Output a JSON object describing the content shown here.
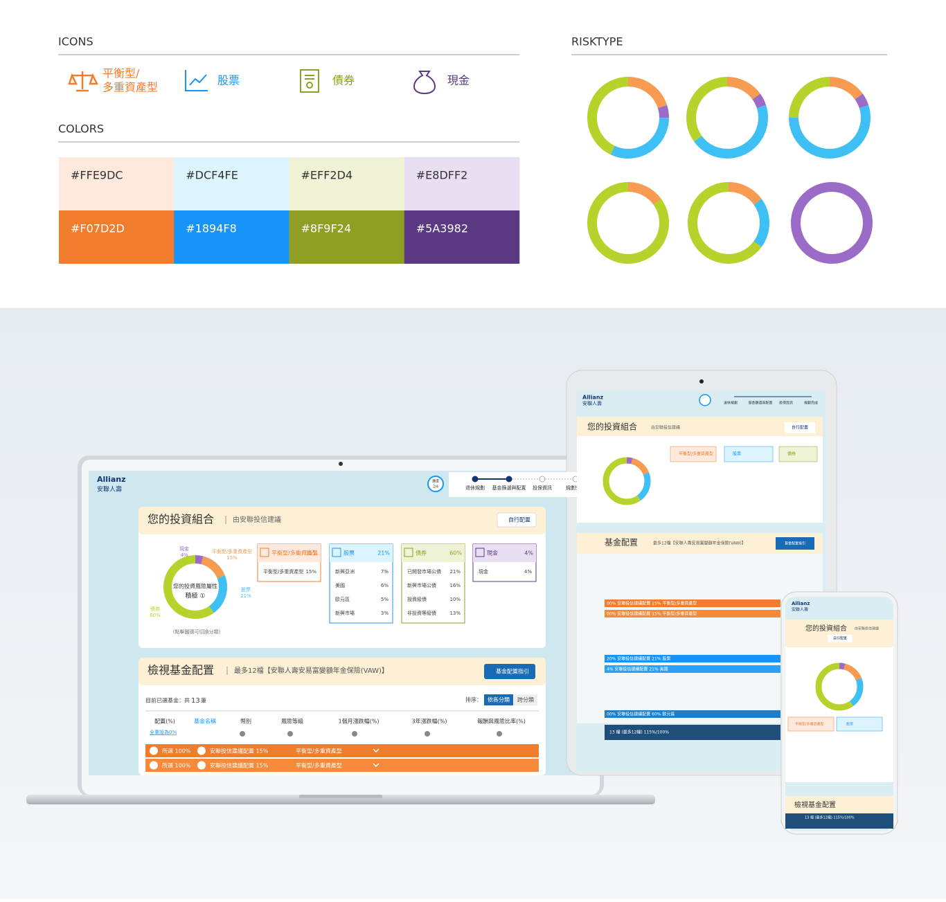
{
  "icons": {
    "heading": "ICONS",
    "items": [
      {
        "lines": [
          "平衡型/",
          "多重資產型"
        ],
        "color": "#F07D2D"
      },
      {
        "lines": [
          "股票"
        ],
        "color": "#1894F8"
      },
      {
        "lines": [
          "債券"
        ],
        "color": "#8F9F24"
      },
      {
        "lines": [
          "現金"
        ],
        "color": "#5A3982"
      }
    ]
  },
  "colors": {
    "heading": "COLORS",
    "swatches": [
      "#FFE9DC",
      "#DCF4FE",
      "#EFF2D4",
      "#E8DFF2",
      "#F07D2D",
      "#1894F8",
      "#8F9F24",
      "#5A3982"
    ]
  },
  "risktype": {
    "heading": "RISKTYPE",
    "donuts": [
      [
        {
          "value": 20,
          "color": "#F79A52"
        },
        {
          "value": 5,
          "color": "#9A6CC8"
        },
        {
          "value": 32,
          "color": "#3EC0F5"
        },
        {
          "value": 43,
          "color": "#B5D32A"
        }
      ],
      [
        {
          "value": 15,
          "color": "#F79A52"
        },
        {
          "value": 5,
          "color": "#9A6CC8"
        },
        {
          "value": 45,
          "color": "#3EC0F5"
        },
        {
          "value": 35,
          "color": "#B5D32A"
        }
      ],
      [
        {
          "value": 15,
          "color": "#F79A52"
        },
        {
          "value": 5,
          "color": "#9A6CC8"
        },
        {
          "value": 55,
          "color": "#3EC0F5"
        },
        {
          "value": 25,
          "color": "#B5D32A"
        }
      ],
      [
        {
          "value": 15,
          "color": "#F79A52"
        },
        {
          "value": 85,
          "color": "#B5D32A"
        }
      ],
      [
        {
          "value": 15,
          "color": "#F79A52"
        },
        {
          "value": 20,
          "color": "#3EC0F5"
        },
        {
          "value": 65,
          "color": "#B5D32A"
        }
      ],
      [
        {
          "value": 100,
          "color": "#9A6CC8"
        }
      ]
    ]
  },
  "laptop": {
    "brand": [
      "Allianz",
      "安聯人壽"
    ],
    "badge": [
      "進度",
      "2/4"
    ],
    "steps": [
      "退休規劃",
      "基金篩選與配置",
      "投保資訊",
      "規劃完成"
    ],
    "portfolio": {
      "title": "您的投資組合",
      "subtitle": "由安聯投信建議",
      "button": "自行配置",
      "center": [
        "您的投資風險屬性",
        "積極 ①"
      ],
      "note": "(點擊圖環可切換分類)",
      "segments": [
        {
          "name": "現金",
          "value": 4,
          "value_label": "4%",
          "color": "#9A6CC8"
        },
        {
          "name": "平衡型/多重資產型",
          "value": 15,
          "value_label": "15%",
          "color": "#F79A52"
        },
        {
          "name": "股票",
          "value": 21,
          "value_label": "21%",
          "color": "#3EC0F5"
        },
        {
          "name": "債券",
          "value": 60,
          "value_label": "60%",
          "color": "#B5D32A"
        }
      ]
    },
    "cards": [
      {
        "name": "平衡型/多重資產型",
        "total": "15%",
        "color": "#F07D2D",
        "bg": "#FFE9DC",
        "rows": [
          [
            "平衡型/多重資產型",
            "15%"
          ]
        ]
      },
      {
        "name": "股票",
        "total": "21%",
        "color": "#1894F8",
        "bg": "#DCF4FE",
        "rows": [
          [
            "新興亞洲",
            "7%"
          ],
          [
            "美國",
            "6%"
          ],
          [
            "歐元區",
            "5%"
          ],
          [
            "新興市場",
            "3%"
          ]
        ]
      },
      {
        "name": "債券",
        "total": "60%",
        "color": "#8F9F24",
        "bg": "#EFF2D4",
        "rows": [
          [
            "已開發市場公債",
            "21%"
          ],
          [
            "新興市場公債",
            "16%"
          ],
          [
            "投資級債",
            "10%"
          ],
          [
            "非投資等級債",
            "13%"
          ]
        ]
      },
      {
        "name": "現金",
        "total": "4%",
        "color": "#5A3982",
        "bg": "#E8DFF2",
        "rows": [
          [
            "現金",
            "4%"
          ]
        ]
      }
    ],
    "funds": {
      "title": "檢視基金配置",
      "subtitle": "最多12檔【安聯人壽安易富變額年金保險(VAW)】",
      "button": "基金配置指引",
      "count_prefix": "目前已選基金：共",
      "count": "13",
      "count_suffix": "筆",
      "sort_label": "排序：",
      "sort_options": [
        "依各分類",
        "跨分類"
      ],
      "columns": [
        "配置(%)",
        "基金名稱",
        "幣別",
        "風險等級",
        "1個月漲跌幅(%)",
        "3年漲跌幅(%)",
        "報酬與風險比率(%)"
      ],
      "reset": "全重設為0%",
      "rows": [
        [
          "所選 100%",
          "安聯投信建議配置 15%",
          "平衡型/多重資產型"
        ],
        [
          "所選 100%",
          "安聯投信建議配置 15%",
          "平衡型/多重資產型"
        ]
      ]
    }
  },
  "tablet": {
    "brand": [
      "Allianz",
      "安聯人壽"
    ],
    "steps": [
      "退休規劃",
      "基金篩選與配置",
      "投保資訊",
      "規劃完成"
    ],
    "portfolio_title": "您的投資組合",
    "portfolio_subtitle": "由安聯投信建議",
    "button": "自行配置",
    "fund_title": "基金配置",
    "fund_subtitle": "最多12檔【安聯人壽安易富變額年金保險(VAW)】",
    "fund_button": "基金配置指引",
    "rows": [
      {
        "text": "00%  安聯投信建議配置 15%  平衡型/多重資產型",
        "color": "#F07D2D"
      },
      {
        "text": "00%  安聯投信建議配置 15%  平衡型/多重資產型",
        "color": "#F48A3A"
      },
      {
        "text": "20%  安聯投信建議配置 21%  股票",
        "color": "#1894F8"
      },
      {
        "text": "4%  安聯投信建議配置 21%  美國",
        "color": "#2AA0F8"
      },
      {
        "text": "00%  安聯投信建議配置 60%  歐元區",
        "color": "#1E7FC8"
      }
    ],
    "footer": "13 檔 (最多12檔)  115%/100%"
  },
  "phone": {
    "brand": [
      "Allianz",
      "安聯人壽"
    ],
    "portfolio_title": "您的投資組合",
    "subtitle": "由安聯投信建議",
    "button": "自行配置",
    "fund_title": "檢視基金配置",
    "footer": "13 檔 (最多12檔)  115%/100%"
  }
}
